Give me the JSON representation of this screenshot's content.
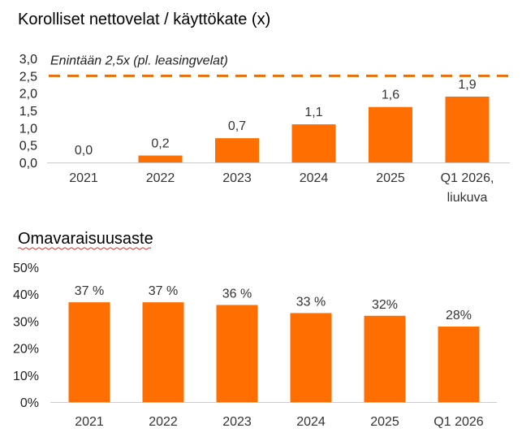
{
  "chart_data": [
    {
      "type": "bar",
      "title": "Korolliset nettovelat / käyttökate (x)",
      "categories": [
        "2021",
        "2022",
        "2023",
        "2024",
        "2025",
        "Q1 2026,\nliukuva"
      ],
      "values": [
        0.0,
        0.2,
        0.7,
        1.1,
        1.6,
        1.9
      ],
      "value_labels": [
        "0,0",
        "0,2",
        "0,7",
        "1,1",
        "1,6",
        "1,9"
      ],
      "yticks": [
        "0,0",
        "0,5",
        "1,0",
        "1,5",
        "2,0",
        "2,5",
        "3,0"
      ],
      "ylim": [
        0,
        3
      ],
      "reference_line": {
        "value": 2.5,
        "label": "Enintään 2,5x (pl. leasingvelat)"
      },
      "grid": false,
      "bar_color": "#FF6E00",
      "line_color": "#E8700A"
    },
    {
      "type": "bar",
      "title": "Omavaraisuusaste",
      "categories": [
        "2021",
        "2022",
        "2023",
        "2024",
        "2025",
        "Q1 2026"
      ],
      "values": [
        37,
        37,
        36,
        33,
        32,
        28
      ],
      "value_labels": [
        "37 %",
        "37 %",
        "36 %",
        "33 %",
        "32%",
        "28%"
      ],
      "yticks": [
        "0%",
        "10%",
        "20%",
        "30%",
        "40%",
        "50%"
      ],
      "ylim": [
        0,
        50
      ],
      "grid": false,
      "bar_color": "#FF6E00"
    }
  ]
}
